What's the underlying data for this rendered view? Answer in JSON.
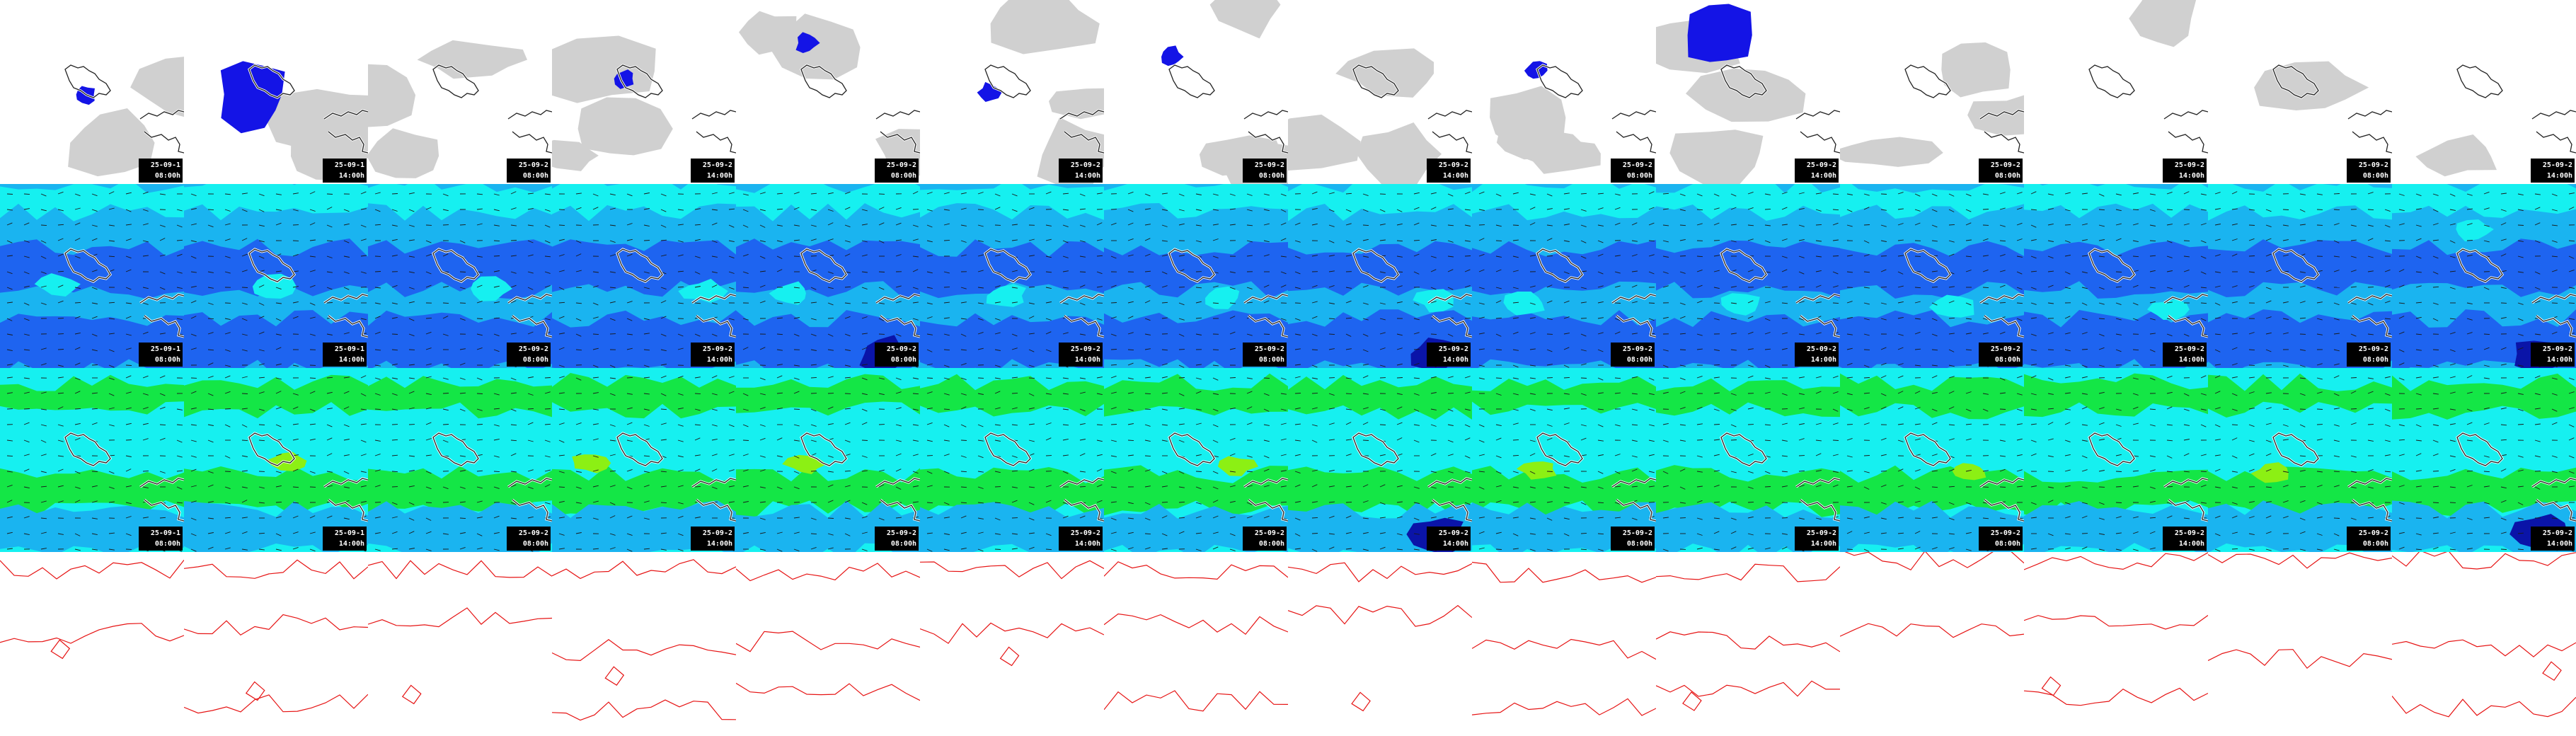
{
  "panels": [
    {
      "date": "25-09-1",
      "time": "08:00h"
    },
    {
      "date": "25-09-1",
      "time": "14:00h"
    },
    {
      "date": "25-09-2",
      "time": "08:00h"
    },
    {
      "date": "25-09-2",
      "time": "14:00h"
    },
    {
      "date": "25-09-2",
      "time": "08:00h"
    },
    {
      "date": "25-09-2",
      "time": "14:00h"
    },
    {
      "date": "25-09-2",
      "time": "08:00h"
    },
    {
      "date": "25-09-2",
      "time": "14:00h"
    },
    {
      "date": "25-09-2",
      "time": "08:00h"
    },
    {
      "date": "25-09-2",
      "time": "14:00h"
    },
    {
      "date": "25-09-2",
      "time": "08:00h"
    },
    {
      "date": "25-09-2",
      "time": "14:00h"
    },
    {
      "date": "25-09-2",
      "time": "08:00h"
    },
    {
      "date": "25-09-2",
      "time": "14:00h"
    }
  ],
  "rows": [
    "precipitation",
    "humidity-low",
    "humidity-high",
    "pressure-contours"
  ],
  "colors": {
    "background": "#ffffff",
    "precip_blue": "#1414e6",
    "cloud_grey": "#d0d0d0",
    "coast": "#222222",
    "fill_cyan": "#16f0f0",
    "fill_mid": "#1ab4f0",
    "fill_blue": "#1e64f0",
    "fill_navy": "#0a14a8",
    "fill_green": "#14e646",
    "fill_lime": "#8cf014",
    "contour_red": "#e61414",
    "stamp_bg": "#000000",
    "stamp_text": "#ffffff"
  }
}
